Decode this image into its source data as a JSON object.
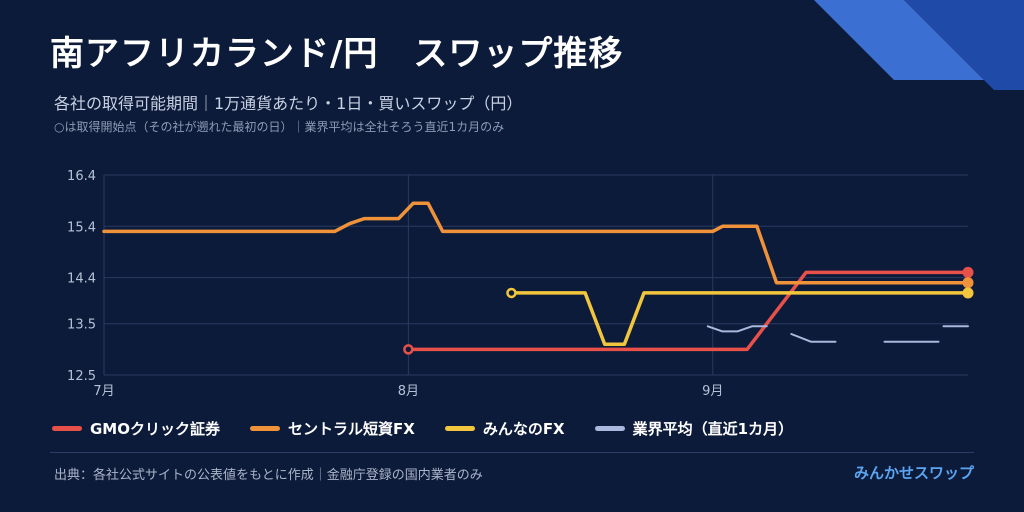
{
  "header": {
    "title": "南アフリカランド/円　スワップ推移",
    "subtitle": "各社の取得可能期間｜1万通貨あたり・1日・買いスワップ（円）",
    "note": "○は取得開始点（その社が遡れた最初の日）｜業界平均は全社そろう直近1カ月のみ"
  },
  "footer": {
    "source": "出典：各社公式サイトの公表値をもとに作成｜金融庁登録の国内業者のみ",
    "brand": "みんかせスワップ"
  },
  "colors": {
    "background": "#0d1b3a",
    "gmo": "#e8504a",
    "central": "#f0923a",
    "minna": "#f2c63c",
    "average": "#a9b8dc",
    "grid": "#2a3a60",
    "corner_light": "#3b6fd1",
    "corner_dark": "#1f4aa8"
  },
  "chart_data": {
    "type": "line",
    "title": "南アフリカランド/円　スワップ推移",
    "ylabel": "",
    "xlabel": "",
    "ylim": [
      12.5,
      16.4
    ],
    "xlim": [
      0,
      88
    ],
    "y_ticks": [
      16.4,
      15.4,
      14.4,
      13.5,
      12.5
    ],
    "y_tick_labels": [
      "16.4",
      "15.4",
      "14.4",
      "13.5",
      "12.5"
    ],
    "x_ticks": [
      0,
      31,
      62
    ],
    "x_tick_labels": [
      "7月",
      "8月",
      "9月"
    ],
    "grid": true,
    "legend_position": "bottom",
    "series": [
      {
        "name": "GMOクリック証券",
        "color": "#e8504a",
        "start_marker": true,
        "end_marker": true,
        "points": [
          [
            31,
            13.0
          ],
          [
            65.5,
            13.0
          ],
          [
            71.5,
            14.5
          ],
          [
            88,
            14.5
          ]
        ]
      },
      {
        "name": "セントラル短資FX",
        "color": "#f0923a",
        "start_marker": false,
        "end_marker": true,
        "points": [
          [
            0,
            15.3
          ],
          [
            23.5,
            15.3
          ],
          [
            25,
            15.45
          ],
          [
            26.5,
            15.55
          ],
          [
            30,
            15.55
          ],
          [
            31.5,
            15.85
          ],
          [
            33,
            15.85
          ],
          [
            34.5,
            15.3
          ],
          [
            62,
            15.3
          ],
          [
            63,
            15.4
          ],
          [
            66.5,
            15.4
          ],
          [
            68.5,
            14.3
          ],
          [
            88,
            14.3
          ]
        ]
      },
      {
        "name": "みんなのFX",
        "color": "#f2c63c",
        "start_marker": true,
        "end_marker": true,
        "points": [
          [
            41.5,
            14.1
          ],
          [
            49,
            14.1
          ],
          [
            51,
            13.1
          ],
          [
            53,
            13.1
          ],
          [
            55,
            14.1
          ],
          [
            88,
            14.1
          ]
        ]
      },
      {
        "name": "業界平均（直近1カ月）",
        "color": "#a9b8dc",
        "start_marker": false,
        "end_marker": false,
        "segments": [
          [
            [
              61.5,
              13.45
            ],
            [
              63,
              13.35
            ],
            [
              64.5,
              13.35
            ],
            [
              66,
              13.45
            ],
            [
              67.5,
              13.45
            ]
          ],
          [
            [
              70,
              13.3
            ],
            [
              72,
              13.15
            ],
            [
              74.5,
              13.15
            ]
          ],
          [
            [
              79.5,
              13.15
            ],
            [
              85,
              13.15
            ]
          ],
          [
            [
              85.5,
              13.45
            ],
            [
              88,
              13.45
            ]
          ]
        ]
      }
    ]
  }
}
